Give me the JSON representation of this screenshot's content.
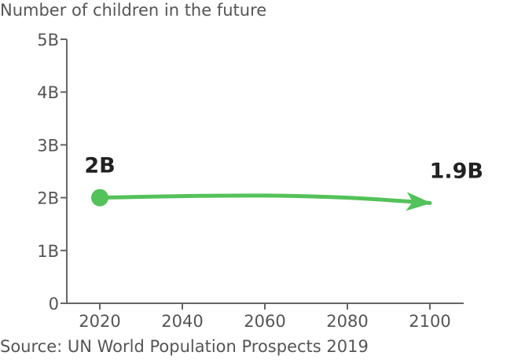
{
  "chart_data": {
    "type": "line",
    "title": "Number of children in the future",
    "xlabel": "",
    "ylabel": "",
    "x_ticks": [
      "2020",
      "2040",
      "2060",
      "2080",
      "2100"
    ],
    "y_ticks": [
      "0",
      "1B",
      "2B",
      "3B",
      "4B",
      "5B"
    ],
    "xlim": [
      2020,
      2100
    ],
    "ylim": [
      0,
      5
    ],
    "grid": false,
    "series": [
      {
        "color": "#53C25A",
        "x": [
          2020,
          2040,
          2060,
          2080,
          2100
        ],
        "y": [
          2.0,
          2.03,
          2.04,
          2.0,
          1.9
        ]
      }
    ],
    "annotations": [
      {
        "text": "2B",
        "x": 2020,
        "y": 2.0
      },
      {
        "text": "1.9B",
        "x": 2100,
        "y": 1.9
      }
    ],
    "source": "Source: UN World Population Prospects 2019"
  }
}
